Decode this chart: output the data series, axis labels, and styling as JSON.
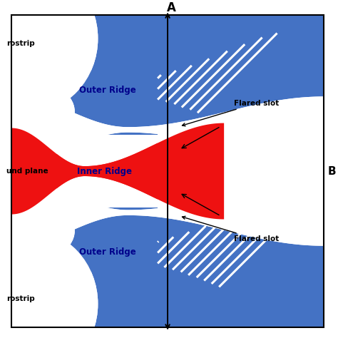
{
  "blue_color": "#4472C4",
  "red_color": "#EE1111",
  "white_color": "#FFFFFF",
  "black_color": "#000000",
  "fig_width": 4.74,
  "fig_height": 4.74,
  "dpi": 100,
  "title_A": "A",
  "label_outer_ridge": "Outer Ridge",
  "label_inner_ridge": "Inner Ridge",
  "label_flared_slot_upper": "Flared slot",
  "label_flared_slot_lower": "Flared slot",
  "label_ground_plane": "und plane",
  "label_microstrip_top": "rostrip",
  "label_microstrip_bot": "rostrip",
  "label_B": "B"
}
